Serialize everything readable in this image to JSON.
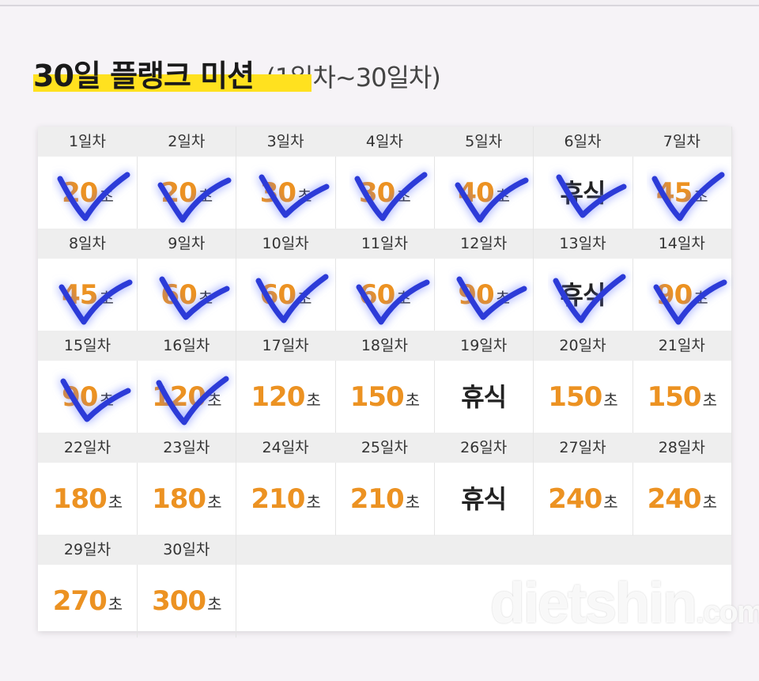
{
  "title": "30일 플랭크 미션",
  "subtitle": "(1일차~30일차)",
  "unit": "초",
  "watermark_main": "dietshin",
  "watermark_suffix": ".com",
  "days": [
    {
      "label": "1일차",
      "value": "20",
      "checked": true
    },
    {
      "label": "2일차",
      "value": "20",
      "checked": true
    },
    {
      "label": "3일차",
      "value": "30",
      "checked": true
    },
    {
      "label": "4일차",
      "value": "30",
      "checked": true
    },
    {
      "label": "5일차",
      "value": "40",
      "checked": true
    },
    {
      "label": "6일차",
      "value": "휴식",
      "rest": true,
      "checked": true
    },
    {
      "label": "7일차",
      "value": "45",
      "checked": true
    },
    {
      "label": "8일차",
      "value": "45",
      "checked": true
    },
    {
      "label": "9일차",
      "value": "60",
      "checked": true
    },
    {
      "label": "10일차",
      "value": "60",
      "checked": true
    },
    {
      "label": "11일차",
      "value": "60",
      "checked": true
    },
    {
      "label": "12일차",
      "value": "90",
      "checked": true
    },
    {
      "label": "13일차",
      "value": "휴식",
      "rest": true,
      "checked": true
    },
    {
      "label": "14일차",
      "value": "90",
      "checked": true
    },
    {
      "label": "15일차",
      "value": "90",
      "checked": true
    },
    {
      "label": "16일차",
      "value": "120",
      "checked": true
    },
    {
      "label": "17일차",
      "value": "120",
      "checked": false
    },
    {
      "label": "18일차",
      "value": "150",
      "checked": false
    },
    {
      "label": "19일차",
      "value": "휴식",
      "rest": true,
      "checked": false
    },
    {
      "label": "20일차",
      "value": "150",
      "checked": false
    },
    {
      "label": "21일차",
      "value": "150",
      "checked": false
    },
    {
      "label": "22일차",
      "value": "180",
      "checked": false
    },
    {
      "label": "23일차",
      "value": "180",
      "checked": false
    },
    {
      "label": "24일차",
      "value": "210",
      "checked": false
    },
    {
      "label": "25일차",
      "value": "210",
      "checked": false
    },
    {
      "label": "26일차",
      "value": "휴식",
      "rest": true,
      "checked": false
    },
    {
      "label": "27일차",
      "value": "240",
      "checked": false
    },
    {
      "label": "28일차",
      "value": "240",
      "checked": false
    },
    {
      "label": "29일차",
      "value": "270",
      "checked": false
    },
    {
      "label": "30일차",
      "value": "300",
      "checked": false
    }
  ]
}
